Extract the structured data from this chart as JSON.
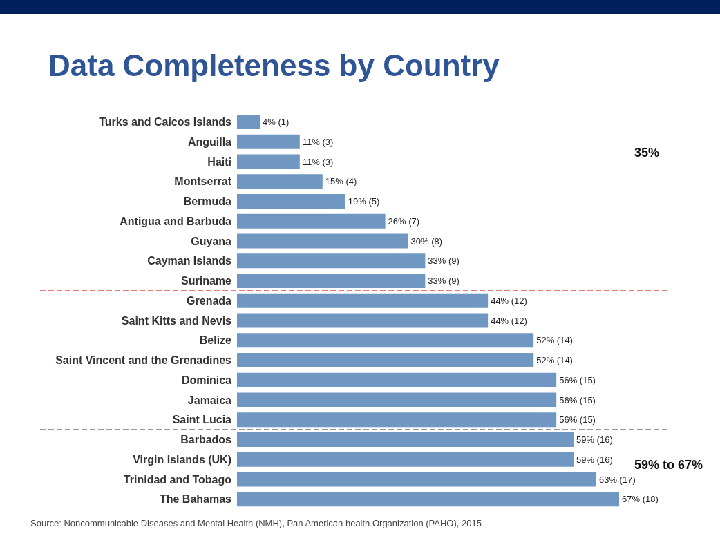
{
  "chart_data": {
    "type": "bar",
    "orientation": "horizontal",
    "title": "Data Completeness by Country",
    "categories": [
      "Turks and Caicos Islands",
      "Anguilla",
      "Haiti",
      "Montserrat",
      "Bermuda",
      "Antigua and Barbuda",
      "Guyana",
      "Cayman Islands",
      "Suriname",
      "Grenada",
      "Saint Kitts and Nevis",
      "Belize",
      "Saint Vincent and the Grenadines",
      "Dominica",
      "Jamaica",
      "Saint Lucia",
      "Barbados",
      "Virgin Islands (UK)",
      "Trinidad and Tobago",
      "The Bahamas"
    ],
    "values": [
      4,
      11,
      11,
      15,
      19,
      26,
      30,
      33,
      33,
      44,
      44,
      52,
      52,
      56,
      56,
      56,
      59,
      59,
      63,
      67
    ],
    "value_labels": [
      "4% (1)",
      "11% (3)",
      "11% (3)",
      "15% (4)",
      "19% (5)",
      "26% (7)",
      "30% (8)",
      "33% (9)",
      "33% (9)",
      "44% (12)",
      "44% (12)",
      "52% (14)",
      "52% (14)",
      "56% (15)",
      "56% (15)",
      "56% (15)",
      "59% (16)",
      "59% (16)",
      "63% (17)",
      "67% (18)"
    ],
    "color": "#7096c2",
    "tick_labels": "y",
    "ref_lines": [
      {
        "axis": "y",
        "value": "Suriname",
        "color": "#d9534f",
        "line_style": "dashed"
      },
      {
        "axis": "y",
        "value": "Saint Lucia",
        "color": "#333333",
        "line_style": "dashed"
      }
    ],
    "annotations": [
      "35%",
      "59% to 67%",
      "Source: Noncommunicable Diseases and Mental Health (NMH), Pan American health Organization (PAHO), 2015"
    ]
  }
}
